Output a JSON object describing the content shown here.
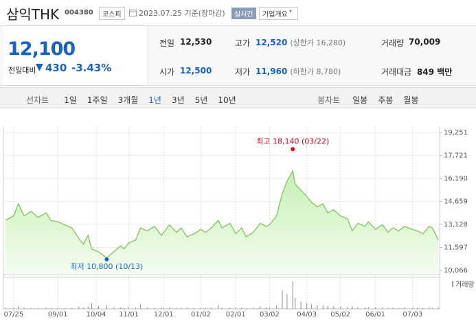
{
  "header": {
    "name": "삼익THK",
    "code": "004380",
    "market": "코스피",
    "date": "2023.07.25 기준(장마감)",
    "realtime": "실시간",
    "overview": "기업개요"
  },
  "quote": {
    "price": "12,100",
    "change_label": "전일대비",
    "change": "430",
    "change_pct": "-3.43%"
  },
  "summary": [
    {
      "label": "전일",
      "value": "12,530"
    },
    {
      "label": "고가",
      "value": "12,520",
      "note": "(상한가 16,280)"
    },
    {
      "label": "거래량",
      "value": "70,009"
    },
    {
      "label": "시가",
      "value": "12,500"
    },
    {
      "label": "저가",
      "value": "11,960",
      "note": "(하한가 8,780)"
    },
    {
      "label": "거래대금",
      "value": "849 백만"
    }
  ],
  "periods": {
    "label": "선차트",
    "items": [
      "1일",
      "1주일",
      "3개월",
      "1년",
      "3년",
      "5년",
      "10년"
    ],
    "active": "1년"
  },
  "candles": {
    "label": "봉차트",
    "items": [
      "일봉",
      "주봉",
      "월봉"
    ]
  },
  "chart_data": {
    "type": "area",
    "color": "#7cc55c",
    "x": [
      "07/18",
      "07/25",
      "07/29",
      "08/03",
      "08/09",
      "08/15",
      "08/22",
      "08/26",
      "09/01",
      "09/07",
      "09/13",
      "09/19",
      "09/23",
      "09/27",
      "09/30",
      "10/06",
      "10/13",
      "10/19",
      "10/25",
      "10/28",
      "11/01",
      "11/07",
      "11/11",
      "11/17",
      "11/23",
      "11/29",
      "12/01",
      "12/06",
      "12/12",
      "12/16",
      "12/21",
      "12/27",
      "01/02",
      "01/06",
      "01/11",
      "01/17",
      "01/20",
      "01/27",
      "02/01",
      "02/06",
      "02/10",
      "02/16",
      "02/22",
      "02/27",
      "03/02",
      "03/08",
      "03/13",
      "03/17",
      "03/22",
      "03/24",
      "03/29",
      "04/03",
      "04/07",
      "04/12",
      "04/17",
      "04/21",
      "04/26",
      "05/02",
      "05/08",
      "05/12",
      "05/17",
      "05/23",
      "05/26",
      "06/01",
      "06/07",
      "06/12",
      "06/16",
      "06/21",
      "06/26",
      "07/03",
      "07/07",
      "07/12",
      "07/17",
      "07/20",
      "07/25"
    ],
    "values": [
      13400,
      13700,
      14500,
      13700,
      14000,
      13600,
      13900,
      13400,
      13300,
      13100,
      12900,
      12200,
      11800,
      12400,
      11500,
      11300,
      10900,
      11300,
      11700,
      11500,
      11900,
      12100,
      12900,
      12700,
      13000,
      12400,
      12600,
      13100,
      12600,
      12900,
      12300,
      12500,
      12800,
      12600,
      12900,
      13400,
      12900,
      13200,
      12500,
      12900,
      12300,
      12600,
      13200,
      13000,
      13100,
      13700,
      15200,
      16000,
      16700,
      15800,
      15400,
      15000,
      14600,
      14300,
      14500,
      13900,
      14100,
      13700,
      13500,
      12700,
      13200,
      13000,
      13300,
      12800,
      13100,
      12600,
      12900,
      12700,
      13000,
      12800,
      12700,
      12500,
      13000,
      12900,
      12100
    ],
    "volume": {
      "name": "거래량",
      "color": "#9a9a9a",
      "values": [
        60000,
        80000,
        150000,
        70000,
        60000,
        50000,
        60000,
        50000,
        40000,
        50000,
        50000,
        120000,
        90000,
        110000,
        300000,
        150000,
        200000,
        90000,
        80000,
        60000,
        90000,
        70000,
        250000,
        80000,
        60000,
        70000,
        60000,
        90000,
        50000,
        60000,
        70000,
        50000,
        60000,
        50000,
        80000,
        200000,
        70000,
        60000,
        80000,
        60000,
        50000,
        60000,
        120000,
        60000,
        70000,
        200000,
        1000000,
        800000,
        1500000,
        600000,
        400000,
        300000,
        250000,
        200000,
        180000,
        150000,
        150000,
        120000,
        100000,
        150000,
        90000,
        80000,
        90000,
        70000,
        80000,
        60000,
        70000,
        60000,
        80000,
        60000,
        50000,
        60000,
        90000,
        60000,
        70000
      ]
    },
    "ylim": [
      10066,
      19251
    ],
    "yticks": [
      {
        "value": 19251,
        "label": "19,251"
      },
      {
        "value": 17721,
        "label": "17,721"
      },
      {
        "value": 16190,
        "label": "16,190"
      },
      {
        "value": 14659,
        "label": "14,659"
      },
      {
        "value": 13128,
        "label": "13,128"
      },
      {
        "value": 11597,
        "label": "11,597"
      },
      {
        "value": 10066,
        "label": "10,066"
      }
    ],
    "xticks": [
      "07/25",
      "09/01",
      "10/04",
      "11/01",
      "12/01",
      "01/02",
      "02/01",
      "03/02",
      "04/03",
      "05/02",
      "06/01",
      "07/03"
    ],
    "annotations": [
      {
        "label": "최고 18,140 (03/22)",
        "value": 18140,
        "date": "03/22",
        "color": "#e0001b"
      },
      {
        "label": "최저 10,800 (10/13)",
        "value": 10800,
        "date": "10/13",
        "color": "#1a66c7"
      }
    ]
  }
}
